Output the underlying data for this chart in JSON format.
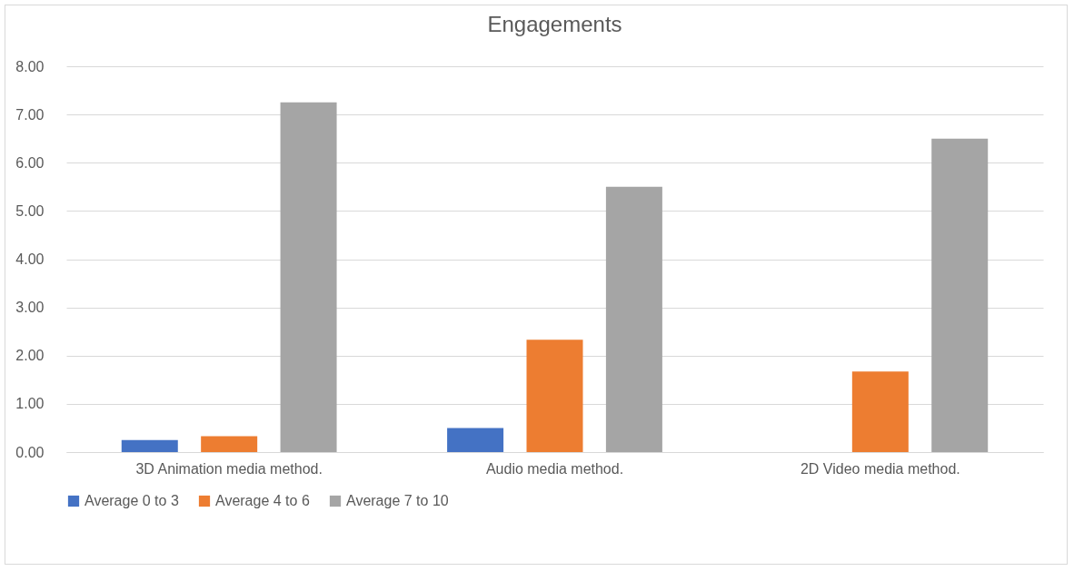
{
  "chart_data": {
    "type": "bar",
    "title": "Engagements",
    "categories": [
      "3D Animation media method.",
      "Audio media method.",
      "2D Video media method."
    ],
    "series": [
      {
        "name": "Average 0 to 3",
        "color": "#4472c4",
        "values": [
          0.25,
          0.5,
          0
        ]
      },
      {
        "name": "Average 4 to 6",
        "color": "#ed7d31",
        "values": [
          0.33,
          2.33,
          1.67
        ]
      },
      {
        "name": "Average 7 to 10",
        "color": "#a5a5a5",
        "values": [
          7.25,
          5.5,
          6.5
        ]
      }
    ],
    "ylim": [
      0,
      8
    ],
    "yticks": [
      {
        "value": 0,
        "label": "0.00"
      },
      {
        "value": 1,
        "label": "1.00"
      },
      {
        "value": 2,
        "label": "2.00"
      },
      {
        "value": 3,
        "label": "3.00"
      },
      {
        "value": 4,
        "label": "4.00"
      },
      {
        "value": 5,
        "label": "5.00"
      },
      {
        "value": 6,
        "label": "6.00"
      },
      {
        "value": 7,
        "label": "7.00"
      },
      {
        "value": 8,
        "label": "8.00"
      }
    ],
    "grid": "y",
    "legend": "bottom"
  }
}
